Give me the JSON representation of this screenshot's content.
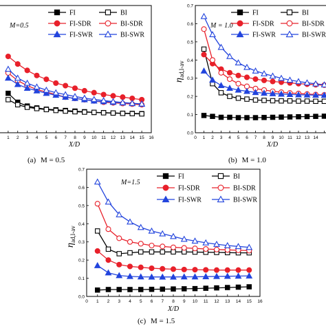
{
  "chart_data": [
    {
      "type": "line",
      "panel_label": "(a)",
      "caption": "M = 0.5",
      "inner_label": "M=0.5",
      "xlabel": "X/D",
      "ylabel": "",
      "xlim": [
        0,
        16
      ],
      "ylim": [
        0,
        1.0
      ],
      "x": [
        1,
        2,
        3,
        4,
        5,
        6,
        7,
        8,
        9,
        10,
        11,
        12,
        13,
        14,
        15
      ],
      "series": [
        {
          "name": "FI",
          "color": "#000000",
          "marker": "square",
          "filled": true,
          "values": [
            0.31,
            0.24,
            0.21,
            0.195,
            0.185,
            0.18,
            0.175,
            0.17,
            0.165,
            0.16,
            0.158,
            0.155,
            0.153,
            0.152,
            0.15
          ]
        },
        {
          "name": "BI",
          "color": "#000000",
          "marker": "square",
          "filled": false,
          "values": [
            0.26,
            0.22,
            0.2,
            0.19,
            0.182,
            0.175,
            0.17,
            0.165,
            0.162,
            0.16,
            0.157,
            0.155,
            0.152,
            0.15,
            0.148
          ]
        },
        {
          "name": "FI-SDR",
          "color": "#e8202a",
          "marker": "circle",
          "filled": true,
          "values": [
            0.6,
            0.54,
            0.49,
            0.45,
            0.42,
            0.39,
            0.37,
            0.35,
            0.33,
            0.315,
            0.3,
            0.29,
            0.28,
            0.27,
            0.26
          ]
        },
        {
          "name": "BI-SDR",
          "color": "#e8202a",
          "marker": "circle",
          "filled": false,
          "values": [
            0.47,
            0.41,
            0.37,
            0.34,
            0.32,
            0.3,
            0.28,
            0.27,
            0.26,
            0.25,
            0.24,
            0.235,
            0.23,
            0.225,
            0.22
          ]
        },
        {
          "name": "FI-SWR",
          "color": "#2244dd",
          "marker": "triangle",
          "filled": true,
          "values": [
            0.43,
            0.38,
            0.35,
            0.33,
            0.31,
            0.295,
            0.28,
            0.27,
            0.26,
            0.25,
            0.245,
            0.24,
            0.235,
            0.23,
            0.225
          ]
        },
        {
          "name": "BI-SWR",
          "color": "#2244dd",
          "marker": "triangle",
          "filled": false,
          "values": [
            0.5,
            0.43,
            0.39,
            0.36,
            0.335,
            0.315,
            0.3,
            0.285,
            0.272,
            0.262,
            0.253,
            0.245,
            0.238,
            0.232,
            0.227
          ]
        }
      ]
    },
    {
      "type": "line",
      "panel_label": "(b)",
      "caption": "M = 1.0",
      "inner_label": "M = 1.0",
      "xlabel": "X/D",
      "ylabel": "η_ad,l-av",
      "xlim": [
        0,
        16
      ],
      "ylim": [
        0,
        0.7
      ],
      "yticks": [
        "0.0",
        "0.1",
        "0.2",
        "0.3",
        "0.4",
        "0.5",
        "0.6",
        "0.7"
      ],
      "x": [
        1,
        2,
        3,
        4,
        5,
        6,
        7,
        8,
        9,
        10,
        11,
        12,
        13,
        14,
        15
      ],
      "series": [
        {
          "name": "FI",
          "color": "#000000",
          "marker": "square",
          "filled": true,
          "values": [
            0.095,
            0.09,
            0.085,
            0.085,
            0.083,
            0.083,
            0.083,
            0.084,
            0.085,
            0.086,
            0.087,
            0.088,
            0.089,
            0.09,
            0.091
          ]
        },
        {
          "name": "BI",
          "color": "#000000",
          "marker": "square",
          "filled": false,
          "values": [
            0.46,
            0.27,
            0.22,
            0.2,
            0.19,
            0.185,
            0.18,
            0.178,
            0.176,
            0.175,
            0.175,
            0.174,
            0.174,
            0.173,
            0.173
          ]
        },
        {
          "name": "FI-SDR",
          "color": "#e8202a",
          "marker": "circle",
          "filled": true,
          "values": [
            0.43,
            0.38,
            0.35,
            0.33,
            0.315,
            0.305,
            0.295,
            0.288,
            0.282,
            0.278,
            0.274,
            0.27,
            0.267,
            0.264,
            0.262
          ]
        },
        {
          "name": "BI-SDR",
          "color": "#e8202a",
          "marker": "circle",
          "filled": false,
          "values": [
            0.57,
            0.4,
            0.33,
            0.295,
            0.27,
            0.255,
            0.243,
            0.235,
            0.228,
            0.223,
            0.219,
            0.216,
            0.213,
            0.21,
            0.208
          ]
        },
        {
          "name": "FI-SWR",
          "color": "#2244dd",
          "marker": "triangle",
          "filled": true,
          "values": [
            0.34,
            0.29,
            0.26,
            0.245,
            0.235,
            0.228,
            0.222,
            0.218,
            0.215,
            0.213,
            0.211,
            0.209,
            0.208,
            0.207,
            0.206
          ]
        },
        {
          "name": "BI-SWR",
          "color": "#2244dd",
          "marker": "triangle",
          "filled": false,
          "values": [
            0.64,
            0.54,
            0.47,
            0.42,
            0.385,
            0.36,
            0.34,
            0.325,
            0.312,
            0.3,
            0.29,
            0.282,
            0.275,
            0.269,
            0.264
          ]
        }
      ]
    },
    {
      "type": "line",
      "panel_label": "(c)",
      "caption": "M = 1.5",
      "inner_label": "M=1.5",
      "xlabel": "X/D",
      "ylabel": "η_ad,l-av",
      "xlim": [
        0,
        16
      ],
      "ylim": [
        0,
        0.7
      ],
      "yticks": [
        "0.0",
        "0.1",
        "0.2",
        "0.3",
        "0.4",
        "0.5",
        "0.6",
        "0.7"
      ],
      "xticks": [
        "0",
        "1",
        "2",
        "3",
        "4",
        "5",
        "6",
        "7",
        "8",
        "9",
        "10",
        "11",
        "12",
        "13",
        "14",
        "15",
        "16"
      ],
      "x": [
        1,
        2,
        3,
        4,
        5,
        6,
        7,
        8,
        9,
        10,
        11,
        12,
        13,
        14,
        15
      ],
      "series": [
        {
          "name": "FI",
          "color": "#000000",
          "marker": "square",
          "filled": true,
          "values": [
            0.035,
            0.038,
            0.038,
            0.038,
            0.038,
            0.039,
            0.04,
            0.041,
            0.042,
            0.043,
            0.045,
            0.047,
            0.049,
            0.051,
            0.053
          ]
        },
        {
          "name": "BI",
          "color": "#000000",
          "marker": "square",
          "filled": false,
          "values": [
            0.36,
            0.26,
            0.235,
            0.24,
            0.245,
            0.245,
            0.245,
            0.245,
            0.245,
            0.244,
            0.243,
            0.242,
            0.241,
            0.24,
            0.24
          ]
        },
        {
          "name": "FI-SDR",
          "color": "#e8202a",
          "marker": "circle",
          "filled": true,
          "values": [
            0.25,
            0.2,
            0.175,
            0.165,
            0.16,
            0.155,
            0.152,
            0.15,
            0.148,
            0.147,
            0.146,
            0.145,
            0.145,
            0.145,
            0.145
          ]
        },
        {
          "name": "BI-SDR",
          "color": "#e8202a",
          "marker": "circle",
          "filled": false,
          "values": [
            0.51,
            0.37,
            0.32,
            0.3,
            0.29,
            0.28,
            0.275,
            0.27,
            0.267,
            0.264,
            0.261,
            0.258,
            0.256,
            0.254,
            0.252
          ]
        },
        {
          "name": "FI-SWR",
          "color": "#2244dd",
          "marker": "triangle",
          "filled": true,
          "values": [
            0.17,
            0.13,
            0.115,
            0.11,
            0.108,
            0.107,
            0.107,
            0.107,
            0.108,
            0.108,
            0.109,
            0.11,
            0.111,
            0.112,
            0.113
          ]
        },
        {
          "name": "BI-SWR",
          "color": "#2244dd",
          "marker": "triangle",
          "filled": false,
          "values": [
            0.63,
            0.52,
            0.45,
            0.41,
            0.38,
            0.36,
            0.345,
            0.33,
            0.315,
            0.305,
            0.295,
            0.287,
            0.28,
            0.275,
            0.27
          ]
        }
      ]
    }
  ]
}
